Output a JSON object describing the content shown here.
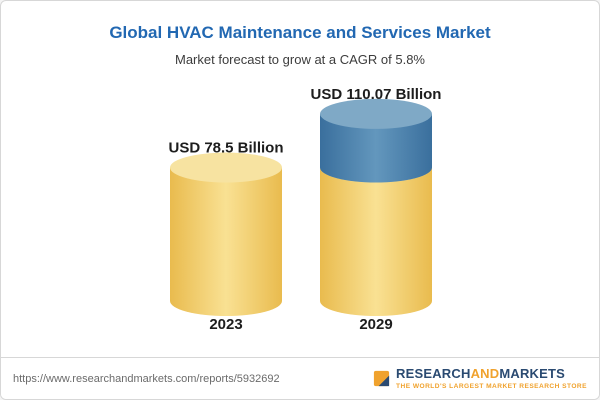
{
  "theme": {
    "title-blue": "#2268B2",
    "text-dark": "#1D1D1D",
    "subtitle-gray": "#3C3C3C",
    "muted-gray": "#6B6B6B",
    "border-gray": "#D7D7D7",
    "logo-navy": "#2A4A71",
    "logo-gold": "#F0A22D"
  },
  "header": {
    "title": "Global HVAC Maintenance and Services Market",
    "subtitle": "Market forecast to grow at a CAGR of 5.8%"
  },
  "chart_data": {
    "type": "bar",
    "variant": "3d-cylinder",
    "title": "Global HVAC Maintenance and Services Market",
    "subtitle": "Market forecast to grow at a CAGR of 5.8%",
    "unit": "USD Billion",
    "categories": [
      "2023",
      "2029"
    ],
    "values": [
      78.5,
      110.07
    ],
    "value_labels": [
      "USD 78.5 Billion",
      "USD 110.07 Billion"
    ],
    "cagr_pct": 5.8,
    "growth_segment": {
      "applies_to": "2029",
      "from_value": 78.5
    },
    "legend": "none",
    "grid": false,
    "colors": {
      "base_edge": "#E9BB4E",
      "base_mid": "#F9E193",
      "base_top": "#F7E3A1",
      "growth_edge": "#3A6F9D",
      "growth_mid": "#6397BD",
      "growth_top": "#7FA9C6"
    }
  },
  "footer": {
    "url": "https://www.researchandmarkets.com/reports/5932692",
    "logo": {
      "word1": "RESEARCH",
      "word2": "AND",
      "word3": "MARKETS",
      "tagline": "THE WORLD'S LARGEST MARKET RESEARCH STORE"
    }
  }
}
